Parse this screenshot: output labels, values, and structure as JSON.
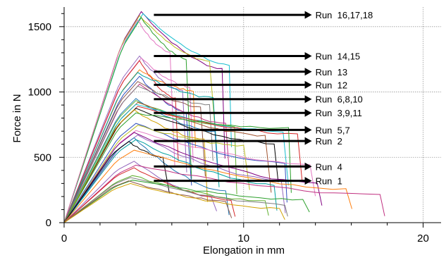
{
  "chart_data": {
    "type": "line",
    "xlabel": "Elongation in mm",
    "ylabel": "Force in N",
    "xlim": [
      0,
      21
    ],
    "ylim": [
      0,
      1650
    ],
    "x_ticks": [
      "0",
      "10",
      "20"
    ],
    "y_ticks": [
      "0",
      "500",
      "1000",
      "1500"
    ],
    "grid": "major dashed",
    "line_colors": [
      "#1f77b4",
      "#d62728",
      "#2ca02c",
      "#9467bd",
      "#8c564b",
      "#e377c2",
      "#17becf",
      "#bcbd22",
      "#000000",
      "#ff7f0e",
      "#7f7f7f",
      "#00a0a0",
      "#a0522d",
      "#3050c0",
      "#c03080",
      "#60b030",
      "#800080",
      "#d0a000"
    ],
    "series": [
      {
        "peak_x": 4.3,
        "peak_y": 1615,
        "end_x": 8.8,
        "end_y": 1100,
        "color_idx": 16
      },
      {
        "peak_x": 4.4,
        "peak_y": 1600,
        "end_x": 9.2,
        "end_y": 1140,
        "color_idx": 6
      },
      {
        "peak_x": 4.2,
        "peak_y": 1585,
        "end_x": 8.1,
        "end_y": 1170,
        "color_idx": 7
      },
      {
        "peak_x": 4.3,
        "peak_y": 1570,
        "end_x": 6.8,
        "end_y": 1200,
        "color_idx": 2
      },
      {
        "peak_x": 4.1,
        "peak_y": 1550,
        "end_x": 5.9,
        "end_y": 1260,
        "color_idx": 5
      },
      {
        "peak_x": 4.2,
        "peak_y": 1275,
        "end_x": 6.6,
        "end_y": 960,
        "color_idx": 3
      },
      {
        "peak_x": 4.3,
        "peak_y": 1260,
        "end_x": 7.0,
        "end_y": 1000,
        "color_idx": 5
      },
      {
        "peak_x": 4.2,
        "peak_y": 1240,
        "end_x": 6.2,
        "end_y": 900,
        "color_idx": 1
      },
      {
        "peak_x": 4.2,
        "peak_y": 1170,
        "end_x": 7.2,
        "end_y": 980,
        "color_idx": 9
      },
      {
        "peak_x": 4.1,
        "peak_y": 1150,
        "end_x": 8.3,
        "end_y": 920,
        "color_idx": 11
      },
      {
        "peak_x": 4.2,
        "peak_y": 1120,
        "end_x": 6.8,
        "end_y": 800,
        "color_idx": 13
      },
      {
        "peak_x": 4.1,
        "peak_y": 1080,
        "end_x": 7.6,
        "end_y": 850,
        "color_idx": 4
      },
      {
        "peak_x": 4.2,
        "peak_y": 1060,
        "end_x": 9.0,
        "end_y": 700,
        "color_idx": 14
      },
      {
        "peak_x": 4.1,
        "peak_y": 1045,
        "end_x": 8.1,
        "end_y": 880,
        "color_idx": 10
      },
      {
        "peak_x": 4.0,
        "peak_y": 950,
        "end_x": 8.4,
        "end_y": 650,
        "color_idx": 0
      },
      {
        "peak_x": 4.0,
        "peak_y": 935,
        "end_x": 9.5,
        "end_y": 700,
        "color_idx": 15
      },
      {
        "peak_x": 4.1,
        "peak_y": 920,
        "end_x": 11.2,
        "end_y": 620,
        "color_idx": 12
      },
      {
        "peak_x": 4.0,
        "peak_y": 905,
        "end_x": 12.2,
        "end_y": 660,
        "color_idx": 6
      },
      {
        "peak_x": 4.1,
        "peak_y": 890,
        "end_x": 13.0,
        "end_y": 640,
        "color_idx": 1
      },
      {
        "peak_x": 4.0,
        "peak_y": 875,
        "end_x": 11.7,
        "end_y": 560,
        "color_idx": 8
      },
      {
        "peak_x": 3.9,
        "peak_y": 865,
        "end_x": 7.8,
        "end_y": 600,
        "color_idx": 17
      },
      {
        "peak_x": 4.0,
        "peak_y": 840,
        "end_x": 12.5,
        "end_y": 700,
        "color_idx": 2
      },
      {
        "peak_x": 4.0,
        "peak_y": 760,
        "end_x": 12.3,
        "end_y": 400,
        "color_idx": 13
      },
      {
        "peak_x": 4.1,
        "peak_y": 745,
        "end_x": 10.0,
        "end_y": 560,
        "color_idx": 7
      },
      {
        "peak_x": 4.0,
        "peak_y": 705,
        "end_x": 13.7,
        "end_y": 400,
        "color_idx": 5
      },
      {
        "peak_x": 3.9,
        "peak_y": 690,
        "end_x": 14.1,
        "end_y": 230,
        "color_idx": 16
      },
      {
        "peak_x": 4.1,
        "peak_y": 670,
        "end_x": 12.1,
        "end_y": 260,
        "color_idx": 3
      },
      {
        "peak_x": 3.9,
        "peak_y": 650,
        "end_x": 9.0,
        "end_y": 170,
        "color_idx": 0
      },
      {
        "peak_x": 4.0,
        "peak_y": 635,
        "end_x": 11.7,
        "end_y": 230,
        "color_idx": 11
      },
      {
        "peak_x": 3.6,
        "peak_y": 620,
        "end_x": 5.5,
        "end_y": 480,
        "color_idx": 8
      },
      {
        "peak_x": 3.9,
        "peak_y": 555,
        "end_x": 15.7,
        "end_y": 200,
        "color_idx": 9
      },
      {
        "peak_x": 3.9,
        "peak_y": 470,
        "end_x": 8.2,
        "end_y": 150,
        "color_idx": 3
      },
      {
        "peak_x": 4.0,
        "peak_y": 440,
        "end_x": 17.6,
        "end_y": 170,
        "color_idx": 14
      },
      {
        "peak_x": 3.9,
        "peak_y": 420,
        "end_x": 9.3,
        "end_y": 130,
        "color_idx": 1
      },
      {
        "peak_x": 3.8,
        "peak_y": 360,
        "end_x": 11.2,
        "end_y": 130,
        "color_idx": 15
      },
      {
        "peak_x": 3.7,
        "peak_y": 345,
        "end_x": 12.3,
        "end_y": 100,
        "color_idx": 10
      },
      {
        "peak_x": 3.8,
        "peak_y": 325,
        "end_x": 13.3,
        "end_y": 150,
        "color_idx": 2
      },
      {
        "peak_x": 3.6,
        "peak_y": 320,
        "end_x": 9.0,
        "end_y": 140,
        "color_idx": 4
      },
      {
        "peak_x": 3.7,
        "peak_y": 300,
        "end_x": 12.0,
        "end_y": 75,
        "color_idx": 17
      }
    ],
    "annotations": [
      {
        "label": "Run  16,17,18",
        "y": 1590
      },
      {
        "label": "Run  14,15",
        "y": 1275
      },
      {
        "label": "Run  13",
        "y": 1155
      },
      {
        "label": "Run  12",
        "y": 1055
      },
      {
        "label": "Run  6,8,10",
        "y": 945
      },
      {
        "label": "Run  3,9,11",
        "y": 840
      },
      {
        "label": "Run  5,7",
        "y": 710
      },
      {
        "label": "Run  2",
        "y": 625
      },
      {
        "label": "Run  4",
        "y": 430
      },
      {
        "label": "Run  1",
        "y": 320
      }
    ],
    "arrow_x_start": 5.0,
    "arrow_x_end": 13.8
  }
}
